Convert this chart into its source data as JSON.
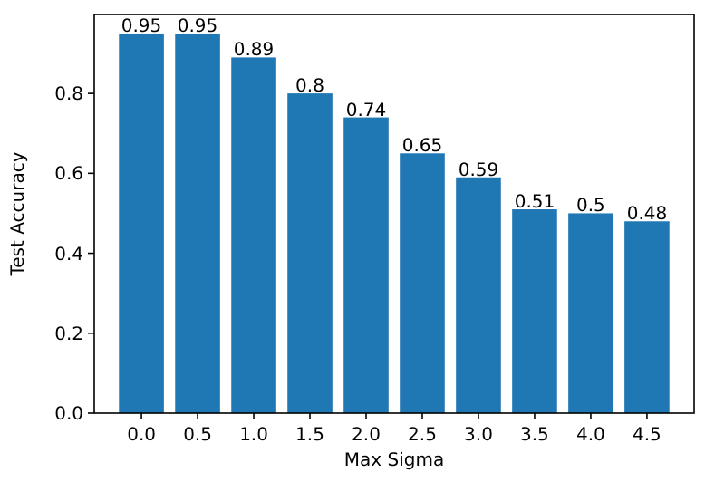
{
  "chart_data": {
    "type": "bar",
    "xlabel": "Max Sigma",
    "ylabel": "Test Accuracy",
    "categories": [
      "0.0",
      "0.5",
      "1.0",
      "1.5",
      "2.0",
      "2.5",
      "3.0",
      "3.5",
      "4.0",
      "4.5"
    ],
    "values": [
      0.95,
      0.95,
      0.89,
      0.8,
      0.74,
      0.65,
      0.59,
      0.51,
      0.5,
      0.48
    ],
    "color": "#1f77b4",
    "ylim": [
      0,
      0.9975
    ],
    "yticks": [
      {
        "value": 0,
        "label": "0.0"
      },
      {
        "value": 0.2,
        "label": "0.2"
      },
      {
        "value": 0.4,
        "label": "0.4"
      },
      {
        "value": 0.6,
        "label": "0.6"
      },
      {
        "value": 0.8,
        "label": "0.8"
      }
    ],
    "data_labels": true
  }
}
